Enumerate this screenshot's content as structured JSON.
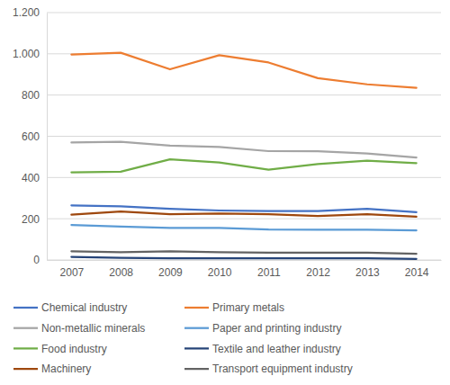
{
  "chart_data": {
    "type": "line",
    "categories": [
      "2007",
      "2008",
      "2009",
      "2010",
      "2011",
      "2012",
      "2013",
      "2014"
    ],
    "series": [
      {
        "name": "Chemical industry",
        "color": "#4472c4",
        "values": [
          265,
          260,
          248,
          240,
          237,
          237,
          248,
          232
        ]
      },
      {
        "name": "Primary metals",
        "color": "#ed7d31",
        "values": [
          997,
          1005,
          925,
          993,
          958,
          882,
          852,
          835
        ]
      },
      {
        "name": "Non-metallic minerals",
        "color": "#a5a5a5",
        "values": [
          570,
          573,
          555,
          548,
          528,
          527,
          517,
          497
        ]
      },
      {
        "name": "Paper and printing industry",
        "color": "#5b9bd5",
        "values": [
          170,
          162,
          155,
          155,
          148,
          147,
          147,
          143
        ]
      },
      {
        "name": "Food industry",
        "color": "#70ad47",
        "values": [
          425,
          428,
          488,
          473,
          438,
          465,
          482,
          470
        ]
      },
      {
        "name": "Textile and leather industry",
        "color": "#264478",
        "values": [
          15,
          10,
          8,
          8,
          8,
          8,
          8,
          5
        ]
      },
      {
        "name": "Machinery",
        "color": "#9e480e",
        "values": [
          220,
          235,
          222,
          225,
          222,
          213,
          222,
          210
        ]
      },
      {
        "name": "Transport equipment industry",
        "color": "#636363",
        "values": [
          42,
          38,
          42,
          38,
          35,
          35,
          35,
          30
        ]
      }
    ],
    "ylim": [
      0,
      1200
    ],
    "yticks": [
      0,
      200,
      400,
      600,
      800,
      {
        "value": 1000,
        "label": "1.000"
      },
      {
        "value": 1200,
        "label": "1.200"
      }
    ],
    "grid": true,
    "legend": "bottom"
  }
}
